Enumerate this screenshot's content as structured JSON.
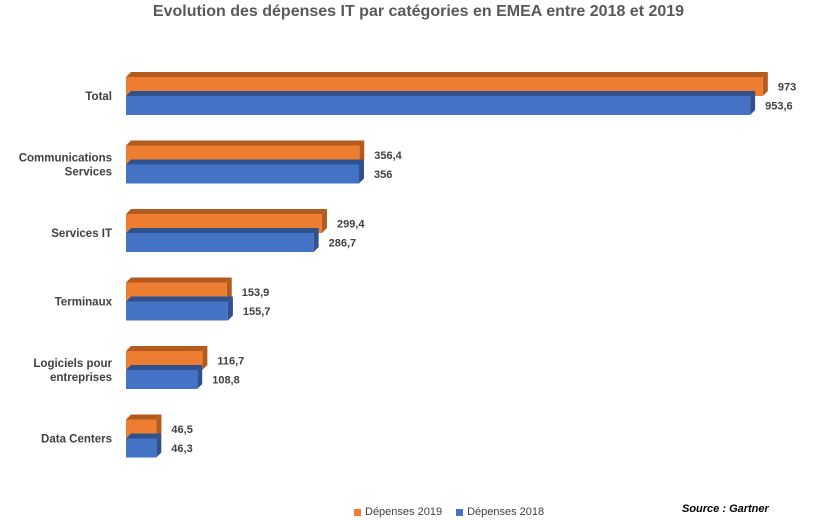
{
  "chart_data": {
    "type": "bar",
    "orientation": "horizontal",
    "title": "Evolution des dépenses IT par catégories en EMEA entre 2018 et 2019",
    "categories": [
      "Total",
      "Communications Services",
      "Services IT",
      "Terminaux",
      "Logiciels pour entreprises",
      "Data Centers"
    ],
    "category_lines": [
      [
        "Total"
      ],
      [
        "Communications",
        "Services"
      ],
      [
        "Services IT"
      ],
      [
        "Terminaux"
      ],
      [
        "Logiciels pour",
        "entreprises"
      ],
      [
        "Data Centers"
      ]
    ],
    "series": [
      {
        "name": "Dépenses 2019",
        "color": "#ED7D31",
        "side_color": "#B35A1F",
        "values": [
          973,
          356.4,
          299.4,
          153.9,
          116.7,
          46.5
        ],
        "labels": [
          "973",
          "356,4",
          "299,4",
          "153,9",
          "116,7",
          "46,5"
        ]
      },
      {
        "name": "Dépenses 2018",
        "color": "#4472C4",
        "side_color": "#2F528F",
        "values": [
          953.6,
          356,
          286.7,
          155.7,
          108.8,
          46.3
        ],
        "labels": [
          "953,6",
          "356",
          "286,7",
          "155,7",
          "108,8",
          "46,3"
        ]
      }
    ],
    "xlim": [
      0,
      1000
    ],
    "grid": false,
    "legend_position": "bottom"
  },
  "source": "Source : Gartner"
}
